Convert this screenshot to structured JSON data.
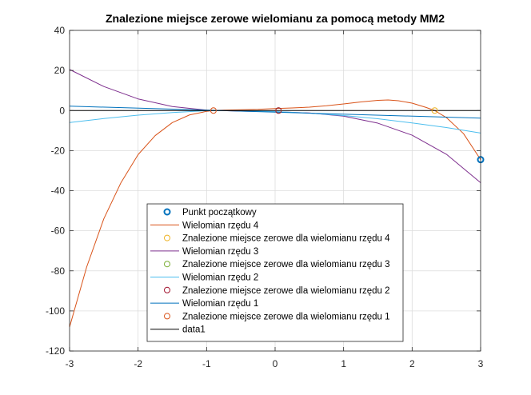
{
  "chart_data": {
    "type": "line",
    "title": "Znalezione miejsce zerowe wielomianu za pomocą metody MM2",
    "xlabel": "",
    "ylabel": "",
    "xlim": [
      -3,
      3
    ],
    "ylim": [
      -120,
      40
    ],
    "xticks": [
      -3,
      -2,
      -1,
      0,
      1,
      2,
      3
    ],
    "yticks": [
      -120,
      -100,
      -80,
      -60,
      -40,
      -20,
      0,
      20,
      40
    ],
    "grid": true,
    "legend_position": "bottom-center",
    "series": [
      {
        "name": "Punkt początkowy",
        "kind": "marker",
        "color": "#0072BD",
        "marker_width": 2,
        "x": [
          3
        ],
        "y": [
          -24.5
        ]
      },
      {
        "name": "Wielomian rzędu 4",
        "kind": "line",
        "color": "#D95319",
        "x": [
          -3.0,
          -2.75,
          -2.5,
          -2.25,
          -2.0,
          -1.75,
          -1.5,
          -1.25,
          -1.0,
          -0.9,
          -0.75,
          -0.5,
          -0.25,
          0.0,
          0.25,
          0.5,
          0.75,
          1.0,
          1.25,
          1.5,
          1.65,
          1.8,
          2.0,
          2.2,
          2.33,
          2.5,
          2.75,
          3.0
        ],
        "y": [
          -108,
          -78,
          -54,
          -36,
          -22,
          -12.5,
          -6,
          -2.2,
          -0.4,
          0.0,
          0.2,
          0.4,
          0.6,
          1.0,
          1.3,
          1.7,
          2.4,
          3.3,
          4.3,
          5.1,
          5.3,
          4.9,
          3.7,
          1.6,
          0.0,
          -3.5,
          -11.5,
          -24.5
        ]
      },
      {
        "name": "Znalezione miejsce zerowe dla wielomianu rzędu 4",
        "kind": "marker",
        "color": "#EDB120",
        "x": [
          2.33
        ],
        "y": [
          0
        ]
      },
      {
        "name": "Wielomian rzędu 3",
        "kind": "line",
        "color": "#7E2F8E",
        "x": [
          -3.0,
          -2.5,
          -2.0,
          -1.5,
          -1.0,
          -0.5,
          0.0,
          0.5,
          1.0,
          1.5,
          2.0,
          2.5,
          3.0
        ],
        "y": [
          20.5,
          12,
          5.8,
          2.0,
          0.2,
          -0.3,
          -0.6,
          -1.2,
          -2.8,
          -6.3,
          -12.3,
          -21.8,
          -36
        ]
      },
      {
        "name": "Znalezione miejsce zerowe dla wielomianu rzędu 3",
        "kind": "marker",
        "color": "#77AC30",
        "x": [
          0.05
        ],
        "y": [
          0
        ]
      },
      {
        "name": "Wielomian rzędu 2",
        "kind": "line",
        "color": "#4DBEEE",
        "x": [
          -3.0,
          -2.5,
          -2.0,
          -1.5,
          -1.0,
          -0.5,
          0.0,
          0.5,
          1.0,
          1.5,
          2.0,
          2.5,
          3.0
        ],
        "y": [
          -6.0,
          -4.0,
          -2.3,
          -1.0,
          -0.1,
          -0.1,
          -0.5,
          -1.3,
          -2.5,
          -4.1,
          -6.2,
          -8.5,
          -11.2
        ]
      },
      {
        "name": "Znalezione miejsce zerowe dla wielomianu rzędu 2",
        "kind": "marker",
        "color": "#A2142F",
        "x": [
          0.05
        ],
        "y": [
          0
        ]
      },
      {
        "name": "Wielomian rzędu 1",
        "kind": "line",
        "color": "#0072BD",
        "x": [
          -3.0,
          3.0
        ],
        "y": [
          2.2,
          -3.8
        ]
      },
      {
        "name": "Znalezione miejsce zerowe dla wielomianu rzędu 1",
        "kind": "marker",
        "color": "#D95319",
        "x": [
          -0.9
        ],
        "y": [
          0
        ]
      },
      {
        "name": "data1",
        "kind": "line",
        "color": "#000000",
        "x": [
          -3.0,
          3.0
        ],
        "y": [
          0,
          0
        ]
      }
    ]
  }
}
